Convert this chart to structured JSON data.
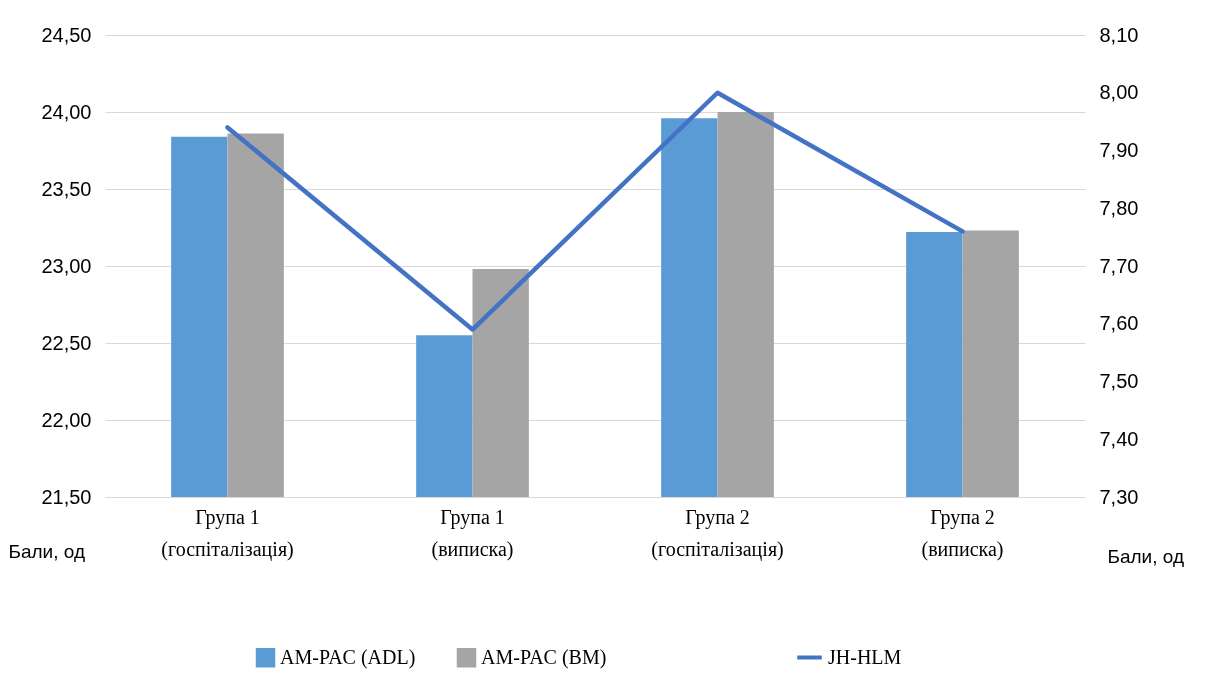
{
  "chart_data": {
    "type": "bar",
    "categories": [
      "Група 1 (госпіталізація)",
      "Група 1 (виписка)",
      "Група 2 (госпіталізація)",
      "Група 2 (виписка)"
    ],
    "ylabel": "Бали, од",
    "y2label": "Бали, од",
    "series": [
      {
        "name": "AM-PAC (ADL)",
        "color": "#5b9bd5",
        "values": [
          23.84,
          22.55,
          23.96,
          23.22
        ]
      },
      {
        "name": "AM-PAC (BM)",
        "color": "#a5a5a5",
        "values": [
          23.86,
          22.98,
          24.0,
          23.23
        ]
      },
      {
        "name": "JH-HLM",
        "type": "line",
        "axis": "y2",
        "color": "#4472c4",
        "marker": "none",
        "line_style": "solid",
        "values": [
          7.94,
          7.59,
          8.0,
          7.76
        ]
      }
    ],
    "ylim": [
      21.5,
      24.5
    ],
    "yticks": [
      {
        "value": 21.5,
        "label": "21,50"
      },
      {
        "value": 22,
        "label": "22,00"
      },
      {
        "value": 22.5,
        "label": "22,50"
      },
      {
        "value": 23,
        "label": "23,00"
      },
      {
        "value": 23.5,
        "label": "23,50"
      },
      {
        "value": 24,
        "label": "24,00"
      },
      {
        "value": 24.5,
        "label": "24,50"
      }
    ],
    "y2lim": [
      7.3,
      8.1
    ],
    "y2ticks": [
      {
        "value": 7.3,
        "label": "7,30"
      },
      {
        "value": 7.4,
        "label": "7,40"
      },
      {
        "value": 7.5,
        "label": "7,50"
      },
      {
        "value": 7.6,
        "label": "7,60"
      },
      {
        "value": 7.7,
        "label": "7,70"
      },
      {
        "value": 7.8,
        "label": "7,80"
      },
      {
        "value": 7.9,
        "label": "7,90"
      },
      {
        "value": 8.0,
        "label": "8,00"
      },
      {
        "value": 8.1,
        "label": "8,10"
      }
    ],
    "grid": "y",
    "legend": "bottom"
  }
}
